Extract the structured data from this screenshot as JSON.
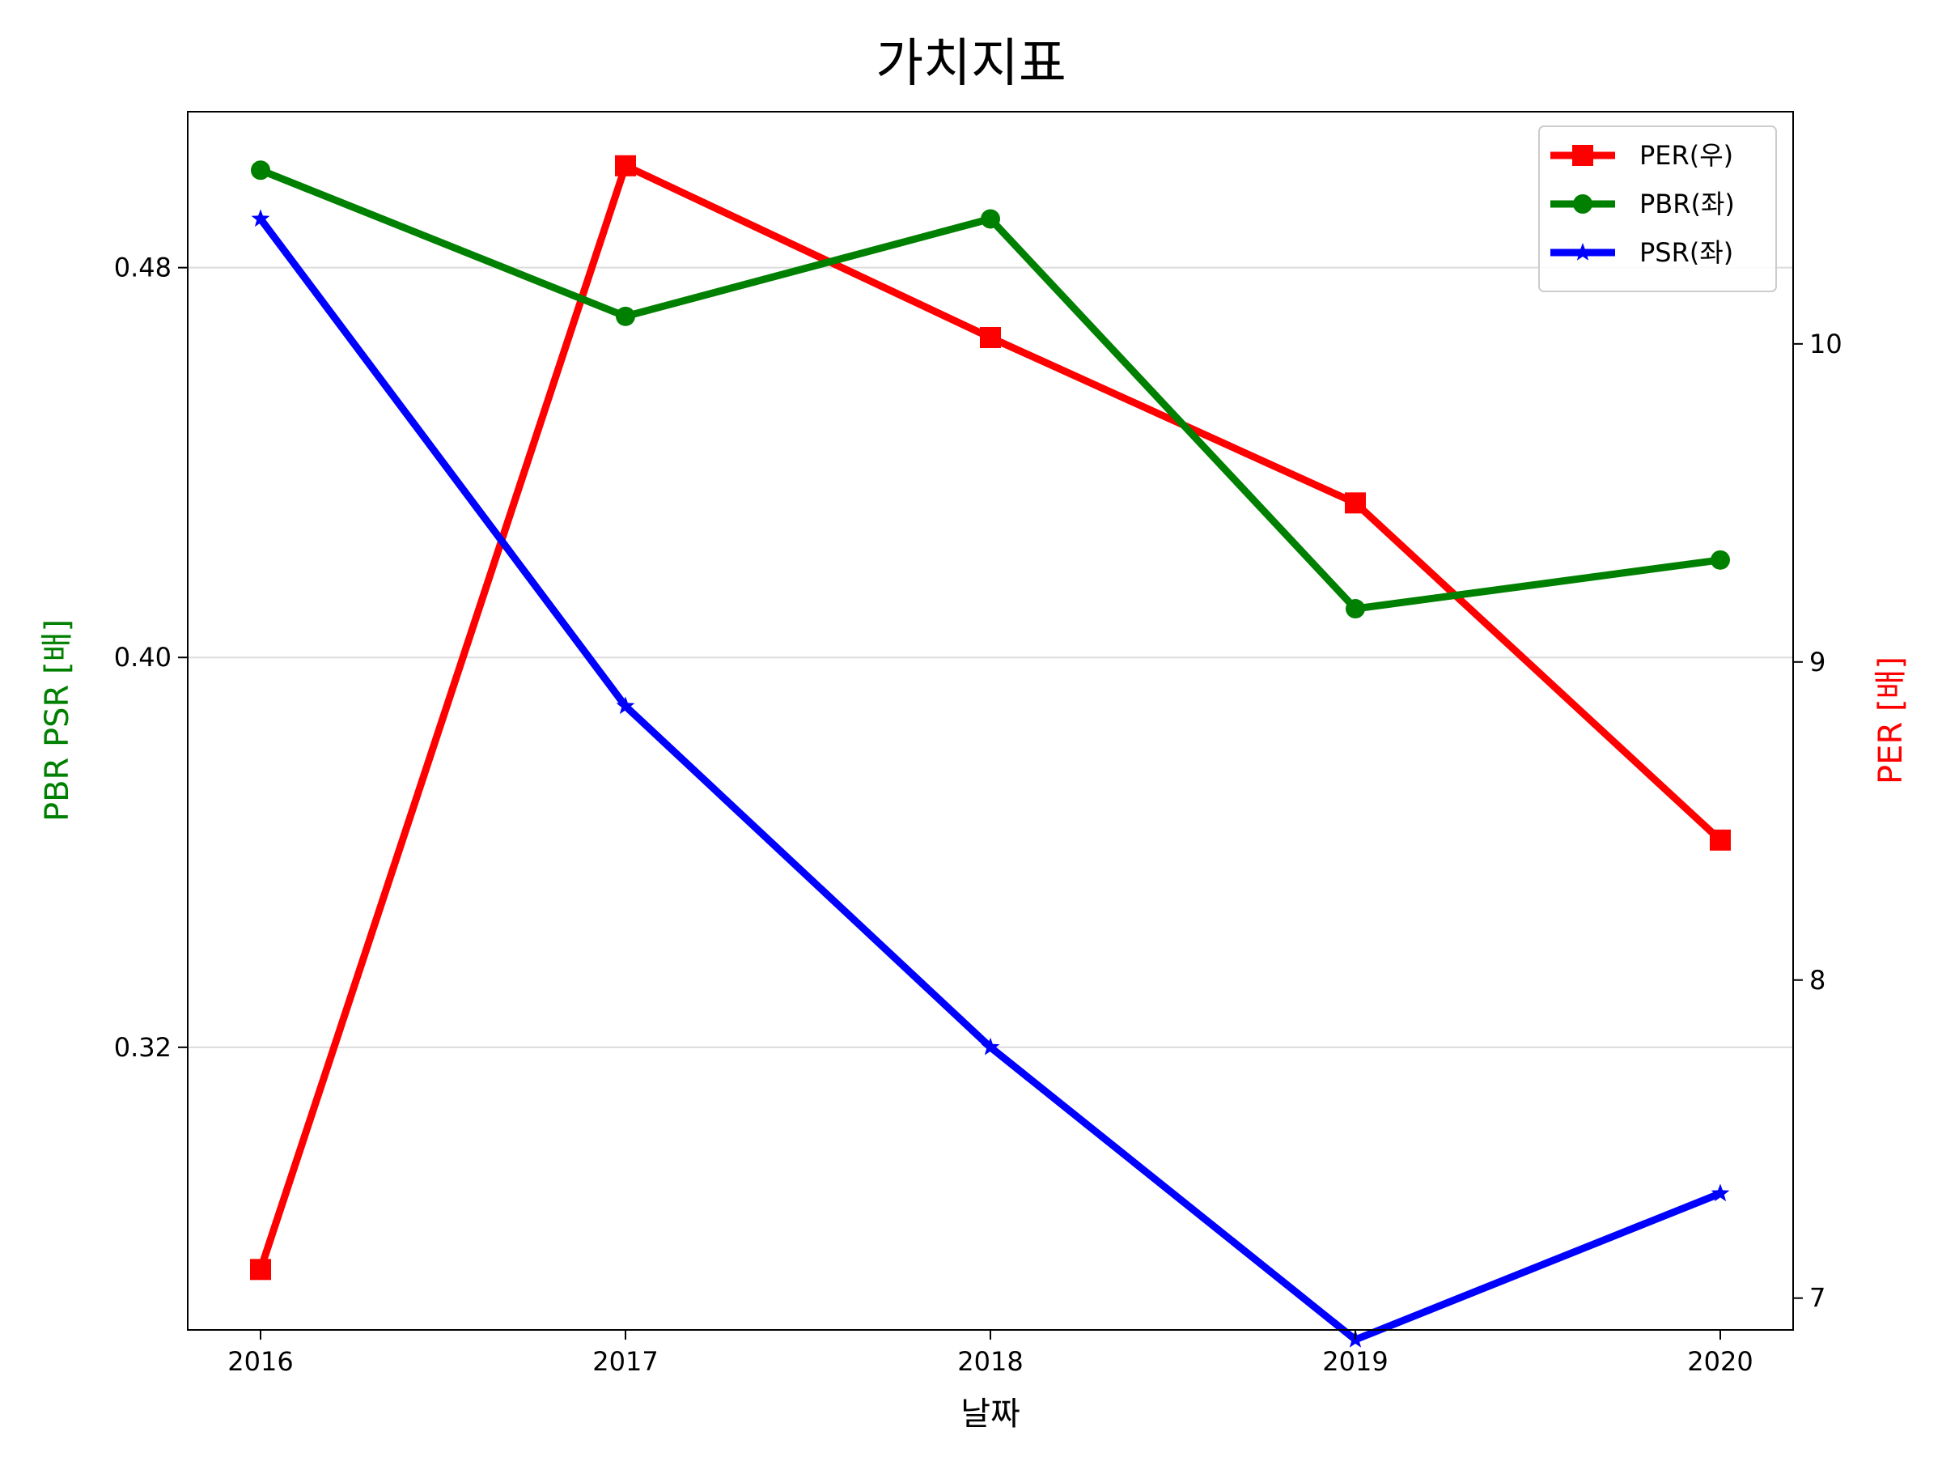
{
  "chart_data": {
    "type": "line",
    "title": "가치지표",
    "xlabel": "날짜",
    "ylabel_left": "PBR PSR [배]",
    "ylabel_right": "PER [배]",
    "categories": [
      "2016",
      "2017",
      "2018",
      "2019",
      "2020"
    ],
    "left_axis": {
      "range": [
        0.262,
        0.512
      ],
      "ticks": [
        "0.32",
        "0.40",
        "0.48"
      ],
      "tick_values": [
        0.32,
        0.4,
        0.48
      ]
    },
    "right_axis": {
      "range": [
        6.9,
        10.73
      ],
      "ticks": [
        "7",
        "8",
        "9",
        "10"
      ],
      "tick_values": [
        7,
        8,
        9,
        10
      ]
    },
    "grid": "horizontal (left axis)",
    "legend_position": "top-right",
    "series": [
      {
        "name": "PER(우)",
        "axis": "right",
        "marker": "square",
        "color": "#ff0000",
        "values": [
          7.09,
          10.56,
          10.02,
          9.5,
          8.44
        ]
      },
      {
        "name": "PBR(좌)",
        "axis": "left",
        "marker": "circle",
        "color": "#008000",
        "values": [
          0.5,
          0.47,
          0.49,
          0.41,
          0.42
        ]
      },
      {
        "name": "PSR(좌)",
        "axis": "left",
        "marker": "star",
        "color": "#0000ff",
        "values": [
          0.49,
          0.39,
          0.32,
          0.26,
          0.29
        ]
      }
    ]
  }
}
